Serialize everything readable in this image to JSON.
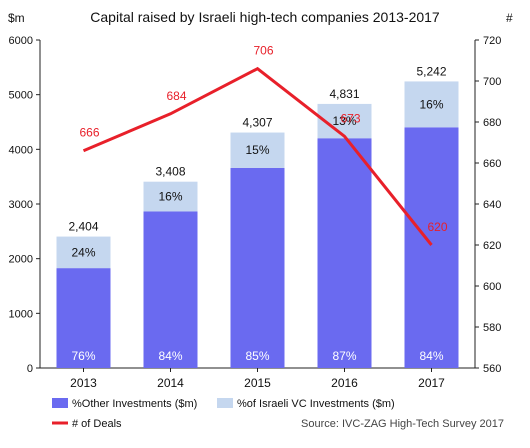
{
  "chart_data": {
    "type": "bar",
    "title": "Capital raised by Israeli high-tech companies 2013-2017",
    "left_axis_unit": "$m",
    "right_axis_unit": "#",
    "categories": [
      "2013",
      "2014",
      "2015",
      "2016",
      "2017"
    ],
    "series": [
      {
        "name": "%Other Investments ($m)",
        "color": "#6a6af0",
        "values": [
          1827,
          2863,
          3661,
          4203,
          4403
        ],
        "share_labels": [
          "76%",
          "84%",
          "85%",
          "87%",
          "84%"
        ]
      },
      {
        "name": "%of Israeli VC Investments ($m)",
        "color": "#c5d7ef",
        "values": [
          577,
          545,
          646,
          628,
          839
        ],
        "share_labels": [
          "24%",
          "16%",
          "15%",
          "13%",
          "16%"
        ]
      },
      {
        "name": "# of Deals",
        "type": "line",
        "axis": "right",
        "color": "#e8202a",
        "values": [
          666,
          684,
          706,
          673,
          620
        ],
        "labels": [
          "666",
          "684",
          "706",
          "673",
          "620"
        ]
      }
    ],
    "total_labels": [
      "2,404",
      "3,408",
      "4,307",
      "4,831",
      "5,242"
    ],
    "left_axis": {
      "min": 0,
      "max": 6000,
      "ticks": [
        "0",
        "1000",
        "2000",
        "3000",
        "4000",
        "5000",
        "6000"
      ]
    },
    "right_axis": {
      "min": 560,
      "max": 720,
      "ticks": [
        "560",
        "580",
        "600",
        "620",
        "640",
        "660",
        "680",
        "700",
        "720"
      ]
    },
    "grid": false,
    "legend_position": "bottom",
    "source_note": "Source: IVC-ZAG High-Tech Survey 2017"
  }
}
